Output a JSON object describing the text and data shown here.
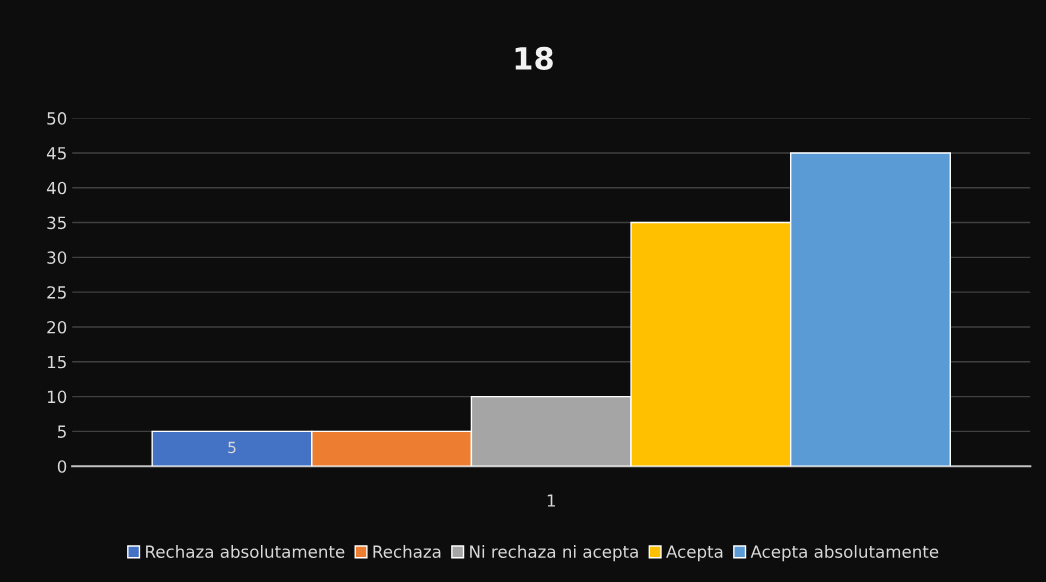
{
  "chart_data": {
    "type": "bar",
    "title": "18",
    "categories": [
      "1"
    ],
    "series": [
      {
        "name": "Rechaza absolutamente",
        "color": "#4472c4",
        "values": [
          5
        ],
        "value_labels": [
          "5"
        ]
      },
      {
        "name": "Rechaza",
        "color": "#ed7d31",
        "values": [
          5
        ]
      },
      {
        "name": "Ni rechaza ni acepta",
        "color": "#a5a5a5",
        "values": [
          10
        ]
      },
      {
        "name": "Acepta",
        "color": "#ffc000",
        "values": [
          35
        ]
      },
      {
        "name": "Acepta absolutamente",
        "color": "#5b9bd5",
        "values": [
          45
        ]
      }
    ],
    "ylim": [
      0,
      50
    ],
    "yticks": [
      0,
      5,
      10,
      15,
      20,
      25,
      30,
      35,
      40,
      45,
      50
    ],
    "grid": "y",
    "legend": "bottom"
  }
}
